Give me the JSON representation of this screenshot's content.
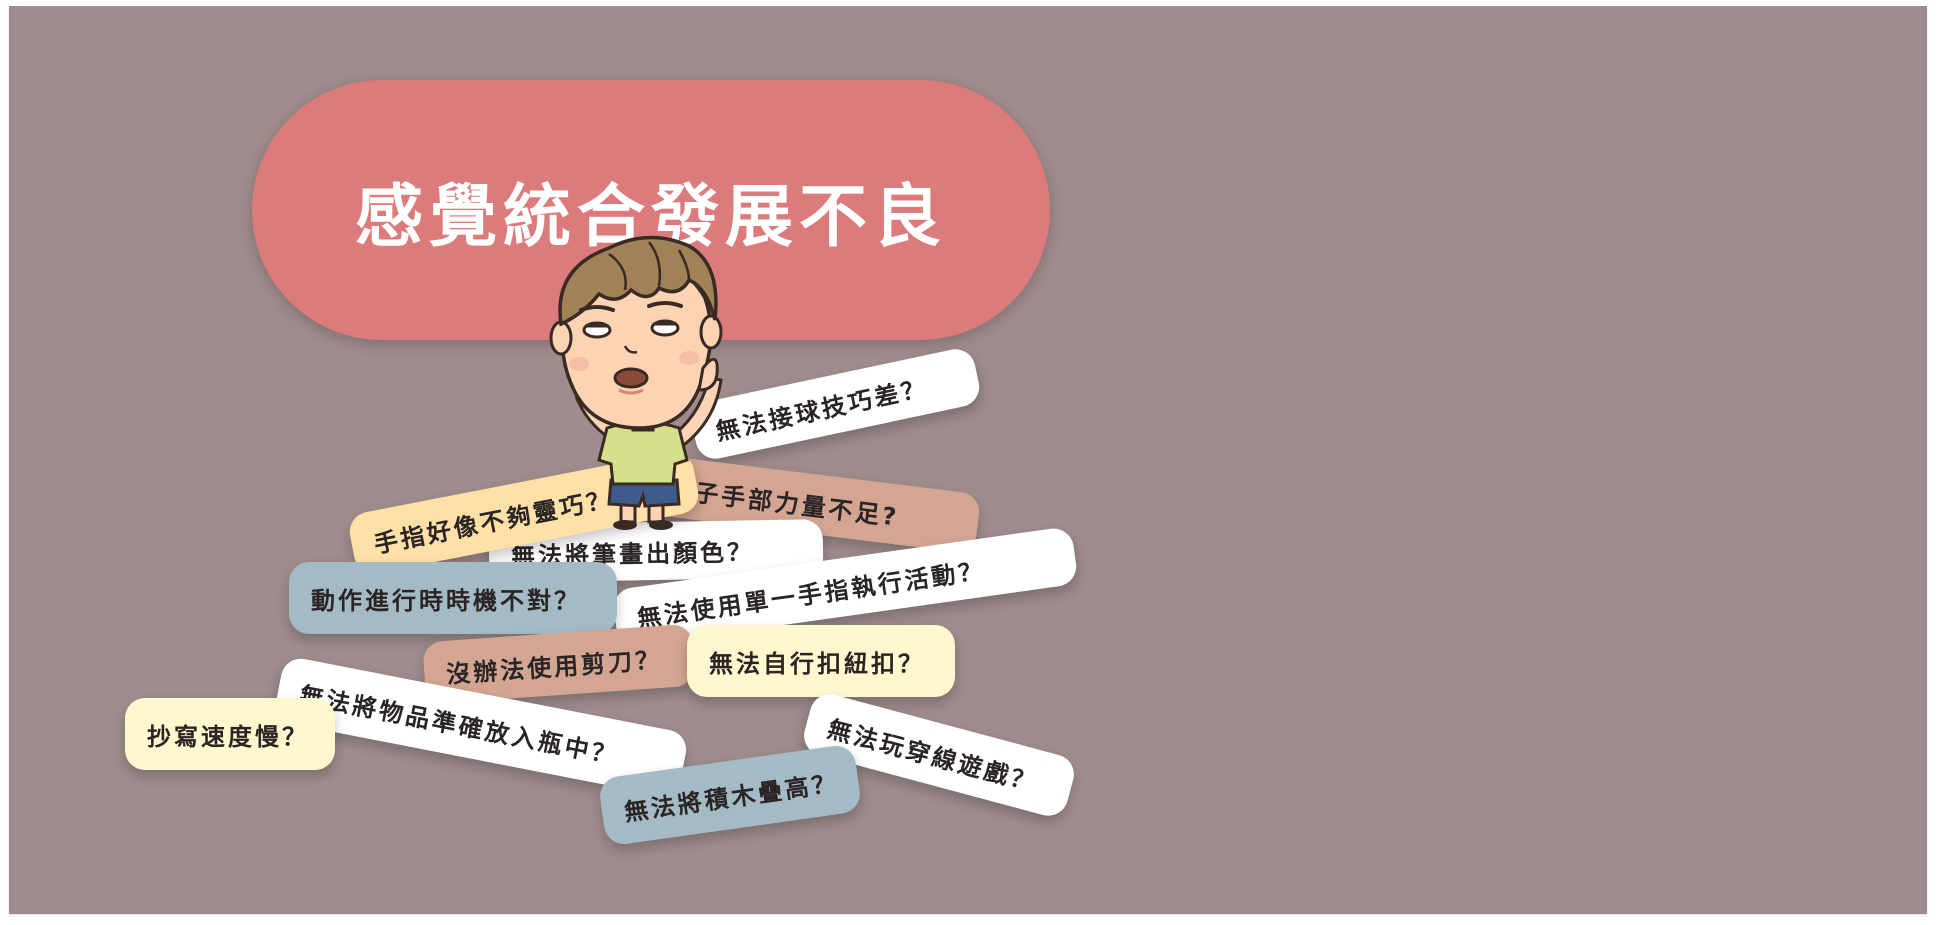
{
  "title": "感覺統合發展不良",
  "questions": {
    "ball": "無法接球技巧差？",
    "strength": "孩子手部力量不足?",
    "fingers": "手指好像不夠靈巧？",
    "color": "無法將筆畫出顏色？",
    "one_hand": "無法使用單一手指執行活動？",
    "timing": "動作進行時時機不對？",
    "scissors": "沒辦法使用剪刀？",
    "button": "無法自行扣紐扣？",
    "bottle": "無法將物品準確放入瓶中？",
    "copy": "抄寫速度慢？",
    "threading": "無法玩穿線遊戲？",
    "blocks": "無法將積木疊高？"
  },
  "colors": {
    "background": "#9f8c8c",
    "title_pill": "#dc7b7c",
    "tag_white": "#ffffff",
    "tag_yellow": "#fff8cf",
    "tag_orange": "#ffe0a6",
    "tag_brown": "#d4a592",
    "tag_blue": "#a4bac4"
  },
  "illustration": "confused-boy-illustration"
}
